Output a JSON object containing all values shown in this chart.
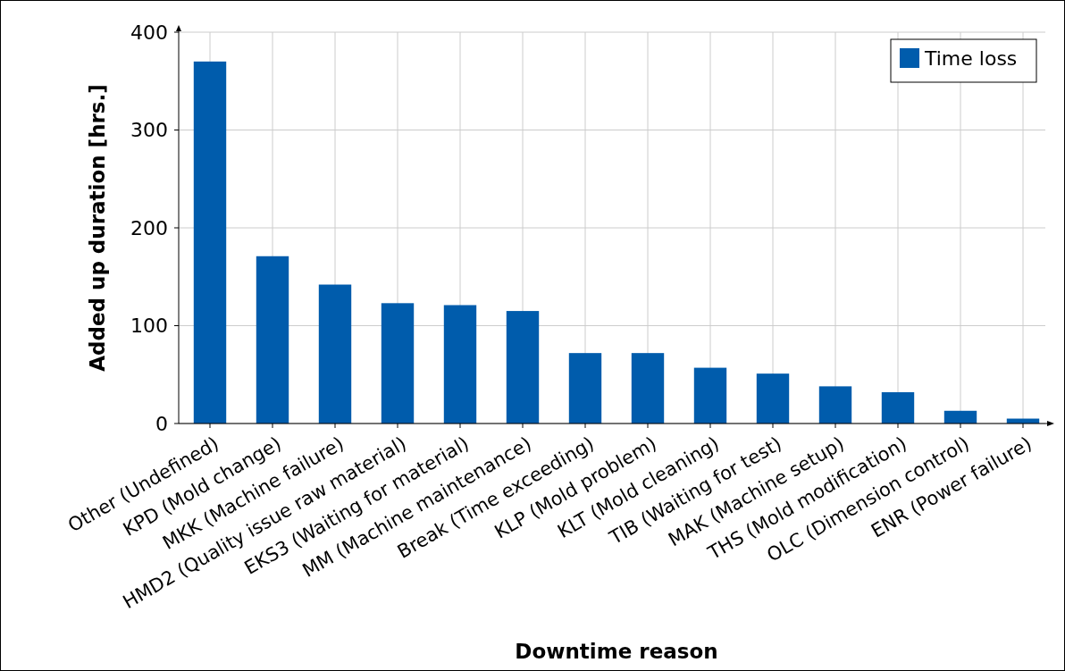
{
  "chart_data": {
    "type": "bar",
    "xlabel": "Downtime reason",
    "ylabel": "Added up duration [hrs.]",
    "categories": [
      "Other (Undefined)",
      "KPD (Mold change)",
      "MKK (Machine failure)",
      "HMD2 (Quality issue raw material)",
      "EKS3 (Waiting for material)",
      "MM (Machine maintenance)",
      "Break (Time exceeding)",
      "KLP (Mold problem)",
      "KLT (Mold cleaning)",
      "TIB (Waiting for test)",
      "MAK (Machine setup)",
      "THS (Mold modification)",
      "OLC (Dimension control)",
      "ENR (Power failure)"
    ],
    "series": [
      {
        "name": "Time loss",
        "color": "#005cac",
        "values": [
          370,
          171,
          142,
          123,
          121,
          115,
          72,
          72,
          57,
          51,
          38,
          32,
          13,
          5
        ]
      }
    ],
    "ylim": [
      0,
      400
    ],
    "yticks": [
      0,
      100,
      200,
      300,
      400
    ],
    "grid": true,
    "legend": "top right"
  }
}
